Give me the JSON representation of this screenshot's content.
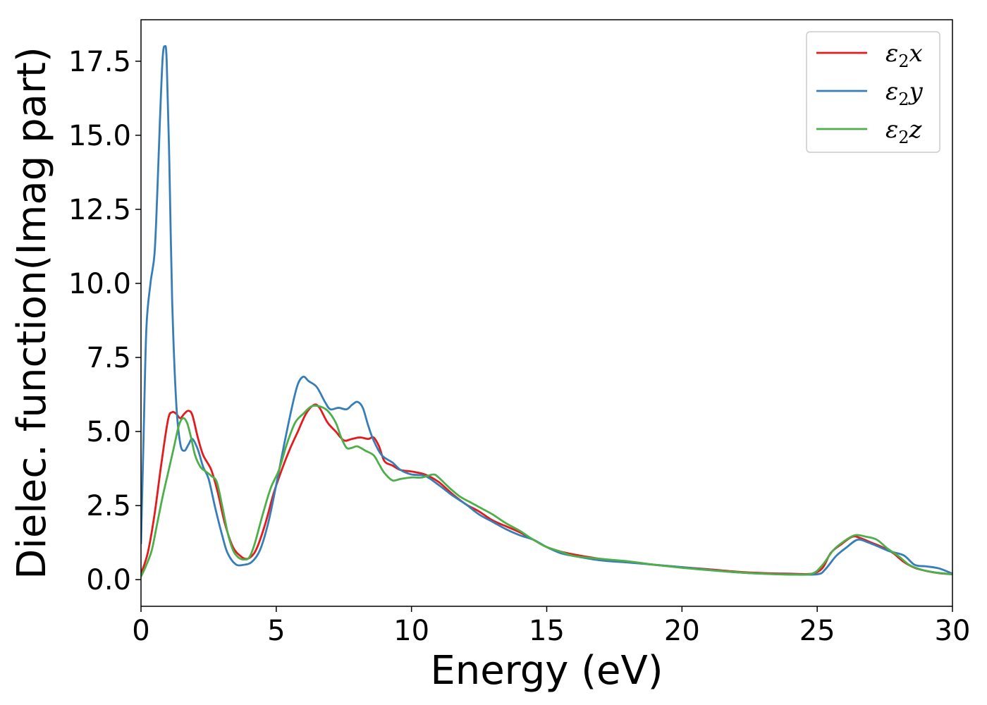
{
  "chart_data": {
    "type": "line",
    "xlabel": "Energy (eV)",
    "ylabel": "Dielec. function(Imag part)",
    "xlim": [
      0,
      30
    ],
    "ylim": [
      -0.9,
      18.9
    ],
    "xticks": [
      0,
      5,
      10,
      15,
      20,
      25,
      30
    ],
    "xtick_labels": [
      "0",
      "5",
      "10",
      "15",
      "20",
      "25",
      "30"
    ],
    "yticks": [
      0.0,
      2.5,
      5.0,
      7.5,
      10.0,
      12.5,
      15.0,
      17.5
    ],
    "ytick_labels": [
      "0.0",
      "2.5",
      "5.0",
      "7.5",
      "10.0",
      "12.5",
      "15.0",
      "17.5"
    ],
    "grid": false,
    "legend_position": "top-right",
    "series": [
      {
        "name": "ε2x",
        "label_base": "ε",
        "label_sub": "2",
        "label_suffix": "x",
        "color": "#e41a1c",
        "points": [
          [
            0,
            0.2
          ],
          [
            0.25,
            0.9
          ],
          [
            0.5,
            2.2
          ],
          [
            0.75,
            3.9
          ],
          [
            1.0,
            5.4
          ],
          [
            1.15,
            5.65
          ],
          [
            1.3,
            5.6
          ],
          [
            1.45,
            5.45
          ],
          [
            1.6,
            5.6
          ],
          [
            1.75,
            5.7
          ],
          [
            1.9,
            5.55
          ],
          [
            2.1,
            4.8
          ],
          [
            2.3,
            4.2
          ],
          [
            2.6,
            3.7
          ],
          [
            2.85,
            2.9
          ],
          [
            3.1,
            1.9
          ],
          [
            3.4,
            1.1
          ],
          [
            3.7,
            0.78
          ],
          [
            3.9,
            0.7
          ],
          [
            4.1,
            0.8
          ],
          [
            4.3,
            1.1
          ],
          [
            4.6,
            1.9
          ],
          [
            4.9,
            2.9
          ],
          [
            5.2,
            3.7
          ],
          [
            5.5,
            4.4
          ],
          [
            5.8,
            5.0
          ],
          [
            6.1,
            5.6
          ],
          [
            6.4,
            5.9
          ],
          [
            6.6,
            5.8
          ],
          [
            6.9,
            5.3
          ],
          [
            7.2,
            5.0
          ],
          [
            7.5,
            4.7
          ],
          [
            7.8,
            4.75
          ],
          [
            8.1,
            4.8
          ],
          [
            8.4,
            4.75
          ],
          [
            8.6,
            4.8
          ],
          [
            8.8,
            4.5
          ],
          [
            9.0,
            4.0
          ],
          [
            9.3,
            3.85
          ],
          [
            9.6,
            3.7
          ],
          [
            10.0,
            3.65
          ],
          [
            10.5,
            3.55
          ],
          [
            11.0,
            3.3
          ],
          [
            11.5,
            2.9
          ],
          [
            12.0,
            2.55
          ],
          [
            12.5,
            2.3
          ],
          [
            13.0,
            2.0
          ],
          [
            13.5,
            1.8
          ],
          [
            14.0,
            1.6
          ],
          [
            14.5,
            1.35
          ],
          [
            15.0,
            1.1
          ],
          [
            15.5,
            0.95
          ],
          [
            16.0,
            0.85
          ],
          [
            17.0,
            0.7
          ],
          [
            18.0,
            0.6
          ],
          [
            19.0,
            0.5
          ],
          [
            20.0,
            0.42
          ],
          [
            21.0,
            0.35
          ],
          [
            22.0,
            0.27
          ],
          [
            23.0,
            0.22
          ],
          [
            24.0,
            0.2
          ],
          [
            24.8,
            0.2
          ],
          [
            25.2,
            0.4
          ],
          [
            25.5,
            0.9
          ],
          [
            25.9,
            1.2
          ],
          [
            26.3,
            1.45
          ],
          [
            26.6,
            1.4
          ],
          [
            27.0,
            1.25
          ],
          [
            27.4,
            1.1
          ],
          [
            27.8,
            0.9
          ],
          [
            28.2,
            0.6
          ],
          [
            28.6,
            0.4
          ],
          [
            29.0,
            0.3
          ],
          [
            29.5,
            0.22
          ],
          [
            30,
            0.18
          ]
        ]
      },
      {
        "name": "ε2y",
        "label_base": "ε",
        "label_sub": "2",
        "label_suffix": "y",
        "color": "#377eb8",
        "points": [
          [
            0,
            1.2
          ],
          [
            0.1,
            5.0
          ],
          [
            0.2,
            8.5
          ],
          [
            0.35,
            10.0
          ],
          [
            0.5,
            11.0
          ],
          [
            0.6,
            13.0
          ],
          [
            0.7,
            15.5
          ],
          [
            0.8,
            17.6
          ],
          [
            0.88,
            18.0
          ],
          [
            0.95,
            17.5
          ],
          [
            1.05,
            14.0
          ],
          [
            1.15,
            9.5
          ],
          [
            1.3,
            6.0
          ],
          [
            1.45,
            4.6
          ],
          [
            1.6,
            4.35
          ],
          [
            1.75,
            4.55
          ],
          [
            1.9,
            4.75
          ],
          [
            2.1,
            4.4
          ],
          [
            2.3,
            3.8
          ],
          [
            2.5,
            3.4
          ],
          [
            2.75,
            2.4
          ],
          [
            3.0,
            1.5
          ],
          [
            3.2,
            0.9
          ],
          [
            3.5,
            0.52
          ],
          [
            3.8,
            0.5
          ],
          [
            4.1,
            0.6
          ],
          [
            4.4,
            1.0
          ],
          [
            4.7,
            1.9
          ],
          [
            5.0,
            3.2
          ],
          [
            5.3,
            4.6
          ],
          [
            5.6,
            5.9
          ],
          [
            5.8,
            6.6
          ],
          [
            6.0,
            6.85
          ],
          [
            6.2,
            6.7
          ],
          [
            6.5,
            6.5
          ],
          [
            6.8,
            6.0
          ],
          [
            7.0,
            5.75
          ],
          [
            7.3,
            5.8
          ],
          [
            7.6,
            5.75
          ],
          [
            7.8,
            5.9
          ],
          [
            8.0,
            6.0
          ],
          [
            8.2,
            5.8
          ],
          [
            8.4,
            5.2
          ],
          [
            8.6,
            4.7
          ],
          [
            8.9,
            4.2
          ],
          [
            9.3,
            3.95
          ],
          [
            9.6,
            3.7
          ],
          [
            10.0,
            3.55
          ],
          [
            10.5,
            3.5
          ],
          [
            11.0,
            3.2
          ],
          [
            11.5,
            2.85
          ],
          [
            12.0,
            2.55
          ],
          [
            12.5,
            2.2
          ],
          [
            13.0,
            1.95
          ],
          [
            13.5,
            1.7
          ],
          [
            14.0,
            1.5
          ],
          [
            14.5,
            1.35
          ],
          [
            15.0,
            1.1
          ],
          [
            15.5,
            0.9
          ],
          [
            16.0,
            0.8
          ],
          [
            17.0,
            0.65
          ],
          [
            18.0,
            0.58
          ],
          [
            19.0,
            0.5
          ],
          [
            20.0,
            0.42
          ],
          [
            21.0,
            0.33
          ],
          [
            22.0,
            0.25
          ],
          [
            23.0,
            0.2
          ],
          [
            24.0,
            0.18
          ],
          [
            25.0,
            0.18
          ],
          [
            25.3,
            0.35
          ],
          [
            25.7,
            0.8
          ],
          [
            26.1,
            1.1
          ],
          [
            26.5,
            1.35
          ],
          [
            26.9,
            1.25
          ],
          [
            27.3,
            1.1
          ],
          [
            27.7,
            0.95
          ],
          [
            28.2,
            0.82
          ],
          [
            28.6,
            0.5
          ],
          [
            29.0,
            0.45
          ],
          [
            29.5,
            0.38
          ],
          [
            30,
            0.2
          ]
        ]
      },
      {
        "name": "ε2z",
        "label_base": "ε",
        "label_sub": "2",
        "label_suffix": "z",
        "color": "#4daf4a",
        "points": [
          [
            0,
            0.1
          ],
          [
            0.2,
            0.5
          ],
          [
            0.4,
            1.0
          ],
          [
            0.6,
            1.9
          ],
          [
            0.8,
            2.8
          ],
          [
            1.0,
            3.6
          ],
          [
            1.2,
            4.4
          ],
          [
            1.4,
            5.2
          ],
          [
            1.55,
            5.45
          ],
          [
            1.7,
            5.3
          ],
          [
            1.85,
            4.8
          ],
          [
            2.0,
            4.2
          ],
          [
            2.2,
            3.8
          ],
          [
            2.4,
            3.65
          ],
          [
            2.6,
            3.5
          ],
          [
            2.8,
            3.3
          ],
          [
            3.0,
            2.5
          ],
          [
            3.2,
            1.6
          ],
          [
            3.4,
            1.0
          ],
          [
            3.6,
            0.75
          ],
          [
            3.8,
            0.68
          ],
          [
            4.0,
            0.75
          ],
          [
            4.2,
            1.2
          ],
          [
            4.5,
            2.2
          ],
          [
            4.8,
            3.1
          ],
          [
            5.1,
            3.7
          ],
          [
            5.4,
            4.6
          ],
          [
            5.7,
            5.3
          ],
          [
            6.0,
            5.6
          ],
          [
            6.3,
            5.85
          ],
          [
            6.6,
            5.85
          ],
          [
            6.9,
            5.7
          ],
          [
            7.2,
            5.3
          ],
          [
            7.4,
            4.8
          ],
          [
            7.6,
            4.45
          ],
          [
            7.8,
            4.45
          ],
          [
            8.0,
            4.5
          ],
          [
            8.3,
            4.35
          ],
          [
            8.6,
            4.2
          ],
          [
            8.8,
            3.9
          ],
          [
            9.0,
            3.6
          ],
          [
            9.3,
            3.35
          ],
          [
            9.6,
            3.4
          ],
          [
            10.0,
            3.45
          ],
          [
            10.4,
            3.45
          ],
          [
            10.8,
            3.55
          ],
          [
            11.0,
            3.45
          ],
          [
            11.4,
            3.1
          ],
          [
            11.8,
            2.8
          ],
          [
            12.2,
            2.6
          ],
          [
            12.6,
            2.4
          ],
          [
            13.0,
            2.2
          ],
          [
            13.5,
            1.9
          ],
          [
            14.0,
            1.65
          ],
          [
            14.5,
            1.35
          ],
          [
            15.0,
            1.1
          ],
          [
            15.5,
            0.95
          ],
          [
            16.0,
            0.8
          ],
          [
            17.0,
            0.7
          ],
          [
            18.0,
            0.62
          ],
          [
            19.0,
            0.5
          ],
          [
            20.0,
            0.4
          ],
          [
            21.0,
            0.32
          ],
          [
            22.0,
            0.25
          ],
          [
            23.0,
            0.2
          ],
          [
            24.0,
            0.17
          ],
          [
            24.8,
            0.2
          ],
          [
            25.2,
            0.5
          ],
          [
            25.6,
            1.0
          ],
          [
            26.0,
            1.3
          ],
          [
            26.4,
            1.5
          ],
          [
            26.8,
            1.45
          ],
          [
            27.2,
            1.35
          ],
          [
            27.6,
            1.05
          ],
          [
            28.0,
            0.8
          ],
          [
            28.4,
            0.5
          ],
          [
            28.8,
            0.35
          ],
          [
            29.3,
            0.25
          ],
          [
            30,
            0.18
          ]
        ]
      }
    ]
  }
}
